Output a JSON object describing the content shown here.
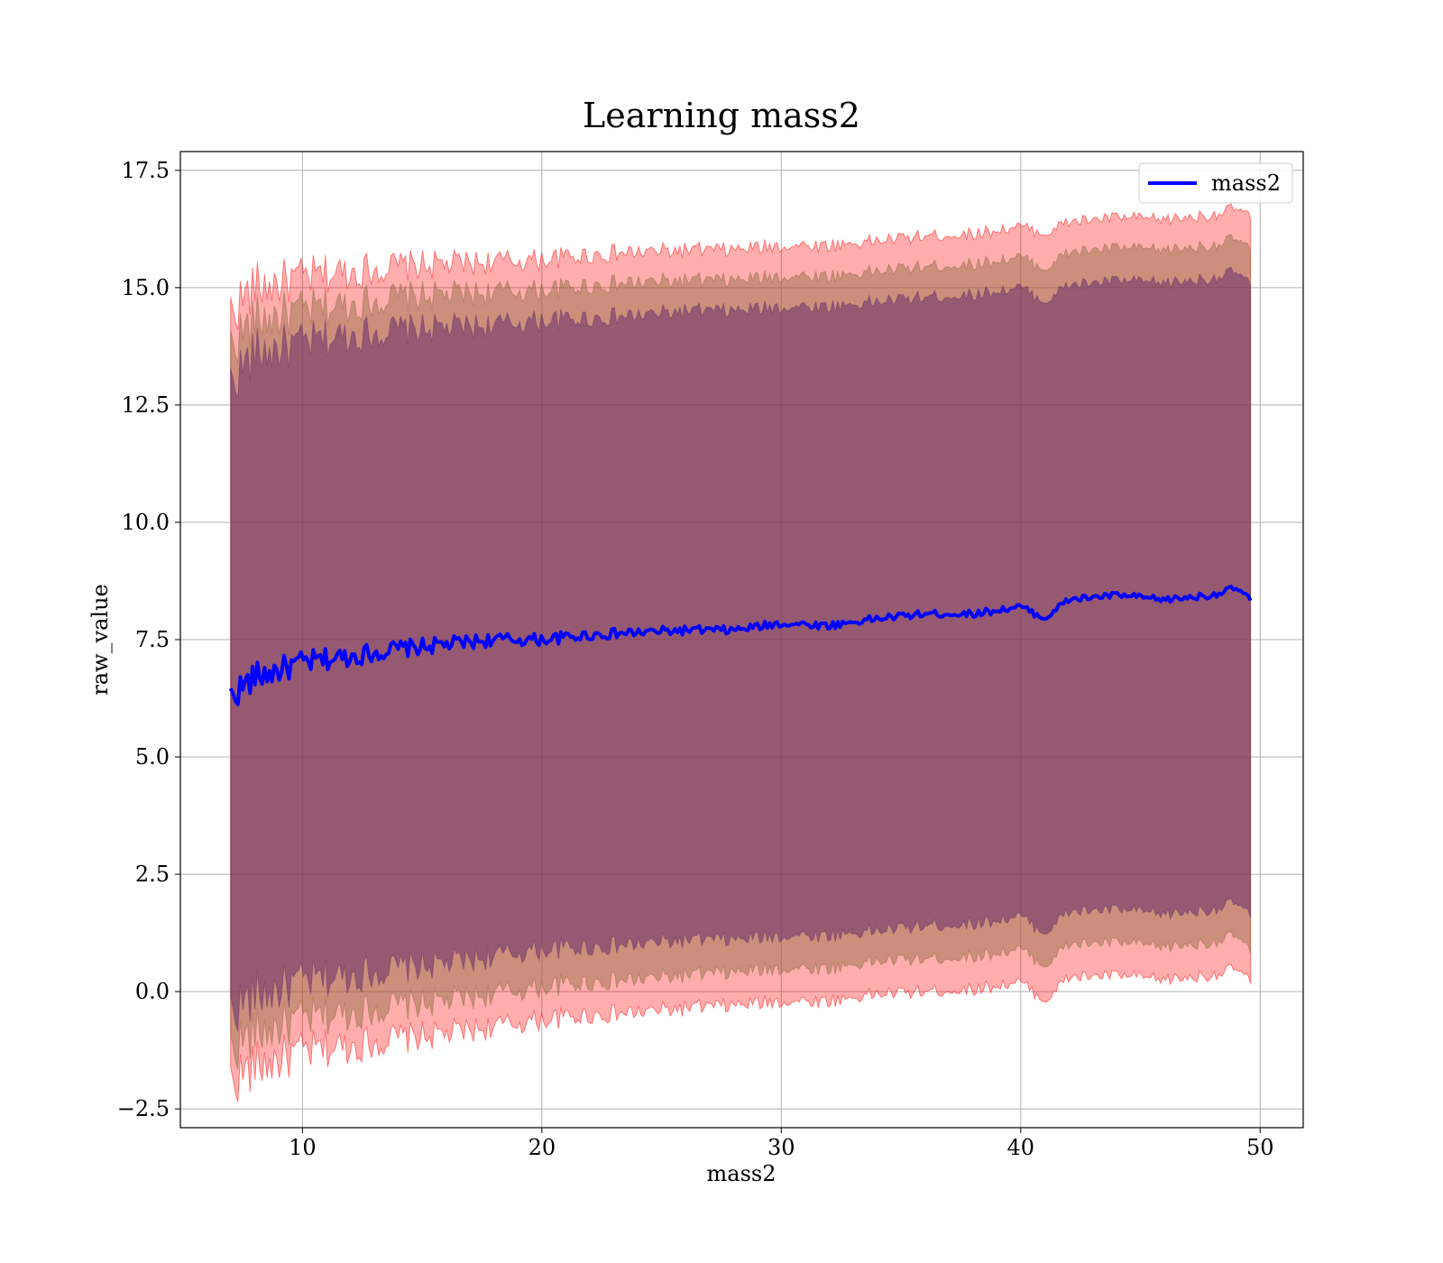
{
  "chart_data": {
    "type": "area",
    "title": "Learning mass2",
    "xlabel": "mass2",
    "ylabel": "raw_value",
    "xlim": [
      4.9,
      51.8
    ],
    "ylim": [
      -2.9,
      17.9
    ],
    "xticks": [
      10,
      20,
      30,
      40,
      50
    ],
    "yticks": [
      -2.5,
      0.0,
      2.5,
      5.0,
      7.5,
      10.0,
      12.5,
      15.0,
      17.5
    ],
    "ytick_labels": [
      "−2.5",
      "0.0",
      "2.5",
      "5.0",
      "7.5",
      "10.0",
      "12.5",
      "15.0",
      "17.5"
    ],
    "grid": true,
    "legend": {
      "position": "top-right",
      "entries": [
        "mass2"
      ]
    },
    "colors": {
      "line": "#0000ff",
      "band_outer": "#ff0000",
      "band_middle": "#8b6b3d",
      "band_inner": "#6b2e6b",
      "grid": "#b0b0b0"
    },
    "x_range": [
      7.0,
      49.6
    ],
    "series": [
      {
        "name": "mass2",
        "role": "mean",
        "x": [
          7,
          8,
          10,
          12,
          14,
          16,
          18,
          20,
          22,
          24,
          26,
          28,
          30,
          32,
          34,
          36,
          38,
          40,
          41,
          42,
          44,
          46,
          48,
          49,
          49.6
        ],
        "y": [
          6.3,
          6.7,
          7.0,
          7.15,
          7.3,
          7.4,
          7.5,
          7.5,
          7.6,
          7.65,
          7.7,
          7.7,
          7.85,
          7.8,
          7.95,
          8.05,
          8.05,
          8.2,
          7.95,
          8.35,
          8.45,
          8.35,
          8.45,
          8.6,
          8.35
        ]
      }
    ],
    "bands": [
      {
        "role": "outer",
        "x": [
          7,
          8,
          10,
          12,
          14,
          16,
          18,
          20,
          22,
          24,
          26,
          28,
          30,
          32,
          34,
          36,
          38,
          40,
          41,
          42,
          44,
          46,
          48,
          49,
          49.6
        ],
        "upper": [
          14.5,
          15.0,
          15.2,
          15.35,
          15.45,
          15.5,
          15.55,
          15.6,
          15.7,
          15.75,
          15.8,
          15.8,
          15.9,
          15.9,
          16.0,
          16.1,
          16.15,
          16.3,
          16.15,
          16.4,
          16.5,
          16.45,
          16.55,
          16.7,
          16.5
        ],
        "lower": [
          -1.9,
          -1.6,
          -1.3,
          -1.15,
          -1.0,
          -0.9,
          -0.75,
          -0.6,
          -0.5,
          -0.45,
          -0.35,
          -0.3,
          -0.2,
          -0.2,
          -0.05,
          0.0,
          0.05,
          0.2,
          -0.2,
          0.3,
          0.35,
          0.25,
          0.35,
          0.5,
          0.2
        ]
      },
      {
        "role": "middle",
        "x": [
          7,
          8,
          10,
          12,
          14,
          16,
          18,
          20,
          22,
          24,
          26,
          28,
          30,
          32,
          34,
          36,
          38,
          40,
          41,
          42,
          44,
          46,
          48,
          49,
          49.6
        ],
        "upper": [
          13.8,
          14.3,
          14.5,
          14.65,
          14.8,
          14.85,
          14.9,
          14.95,
          15.05,
          15.1,
          15.15,
          15.15,
          15.25,
          15.25,
          15.35,
          15.45,
          15.5,
          15.65,
          15.4,
          15.75,
          15.85,
          15.8,
          15.9,
          16.05,
          15.8
        ],
        "lower": [
          -1.2,
          -0.9,
          -0.6,
          -0.45,
          -0.3,
          -0.2,
          -0.05,
          0.1,
          0.2,
          0.25,
          0.35,
          0.4,
          0.5,
          0.5,
          0.65,
          0.7,
          0.75,
          0.9,
          0.55,
          1.0,
          1.05,
          0.95,
          1.05,
          1.2,
          0.85
        ]
      },
      {
        "role": "inner",
        "x": [
          7,
          8,
          10,
          12,
          14,
          16,
          18,
          20,
          22,
          24,
          26,
          28,
          30,
          32,
          34,
          36,
          38,
          40,
          41,
          42,
          44,
          46,
          48,
          49,
          49.6
        ],
        "upper": [
          13.0,
          13.6,
          13.8,
          14.0,
          14.1,
          14.15,
          14.2,
          14.3,
          14.35,
          14.4,
          14.5,
          14.5,
          14.6,
          14.6,
          14.7,
          14.8,
          14.85,
          15.0,
          14.7,
          15.05,
          15.15,
          15.1,
          15.2,
          15.35,
          15.05
        ],
        "lower": [
          -0.4,
          -0.1,
          0.2,
          0.35,
          0.5,
          0.6,
          0.75,
          0.9,
          0.95,
          1.0,
          1.1,
          1.1,
          1.2,
          1.2,
          1.3,
          1.4,
          1.45,
          1.6,
          1.25,
          1.7,
          1.75,
          1.65,
          1.75,
          1.9,
          1.6
        ]
      }
    ]
  }
}
